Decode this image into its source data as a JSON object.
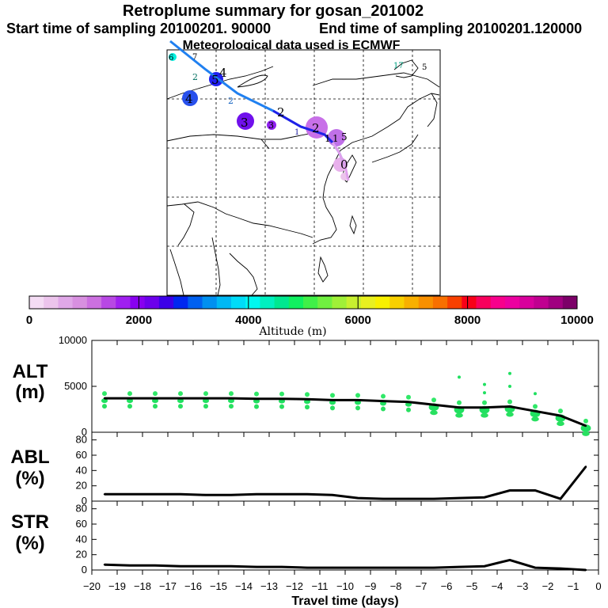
{
  "header": {
    "title": "Retroplume summary for gosan_201002",
    "start_label": "Start time of sampling 20100201. 90000",
    "end_label": "End time of sampling 20100201.120000",
    "met_label": "Meteorological data used is ECMWF"
  },
  "colorbar": {
    "label": "Altitude (m)",
    "ticks": [
      "0",
      "2000",
      "4000",
      "6000",
      "8000",
      "10000"
    ],
    "colors": [
      "#f4dcf4",
      "#ecc4ec",
      "#e0a8e8",
      "#d890e0",
      "#cc70e0",
      "#b848e4",
      "#a020f0",
      "#8800f0",
      "#6c00ec",
      "#3c00e8",
      "#0028f0",
      "#0060f0",
      "#0090f0",
      "#00b8f4",
      "#00dcf8",
      "#00f8f0",
      "#00f0c0",
      "#00e890",
      "#10f060",
      "#40f048",
      "#70f040",
      "#a0f038",
      "#c8f030",
      "#e8f020",
      "#f8f000",
      "#f8d000",
      "#f8b000",
      "#f89000",
      "#f87000",
      "#f84000",
      "#f80018",
      "#f8005c",
      "#f8008c",
      "#ec00a0",
      "#d8009c",
      "#c00090",
      "#a00080",
      "#7c0068"
    ]
  },
  "map": {
    "trajectory_labels": [
      "0",
      "1",
      "1",
      "2",
      "2",
      "3",
      "4",
      "5",
      "2",
      "3",
      "4",
      "6",
      "7",
      "2",
      "5",
      "1",
      "5",
      "17"
    ]
  },
  "chart_data": [
    {
      "type": "line",
      "panel": "ALT",
      "ylabel_lines": [
        "ALT",
        "(m)"
      ],
      "ylim": [
        0,
        10000
      ],
      "yticks": [
        "0",
        "5000",
        "10000"
      ],
      "x": [
        -19.5,
        -18.5,
        -17.5,
        -16.5,
        -15.5,
        -14.5,
        -13.5,
        -12.5,
        -11.5,
        -10.5,
        -9.5,
        -8.5,
        -7.5,
        -6.5,
        -5.5,
        -4.5,
        -3.5,
        -2.5,
        -1.5,
        -0.5
      ],
      "values": [
        3700,
        3700,
        3700,
        3700,
        3700,
        3700,
        3650,
        3650,
        3600,
        3500,
        3500,
        3400,
        3300,
        3000,
        2700,
        2700,
        2800,
        2300,
        1800,
        700
      ]
    },
    {
      "type": "line",
      "panel": "ABL",
      "ylabel_lines": [
        "ABL",
        "(%)"
      ],
      "ylim": [
        0,
        90
      ],
      "yticks": [
        "0",
        "20",
        "40",
        "60",
        "80"
      ],
      "x": [
        -19.5,
        -18.5,
        -17.5,
        -16.5,
        -15.5,
        -14.5,
        -13.5,
        -12.5,
        -11.5,
        -10.5,
        -9.5,
        -8.5,
        -7.5,
        -6.5,
        -5.5,
        -4.5,
        -3.5,
        -2.5,
        -1.5,
        -0.5
      ],
      "values": [
        9,
        9,
        9,
        9,
        8,
        8,
        9,
        9,
        9,
        8,
        4,
        3,
        3,
        3,
        4,
        5,
        14,
        14,
        3,
        45
      ]
    },
    {
      "type": "line",
      "panel": "STR",
      "ylabel_lines": [
        "STR",
        "(%)"
      ],
      "ylim": [
        0,
        90
      ],
      "yticks": [
        "0",
        "20",
        "40",
        "60",
        "80"
      ],
      "x": [
        -19.5,
        -18.5,
        -17.5,
        -16.5,
        -15.5,
        -14.5,
        -13.5,
        -12.5,
        -11.5,
        -10.5,
        -9.5,
        -8.5,
        -7.5,
        -6.5,
        -5.5,
        -4.5,
        -3.5,
        -2.5,
        -1.5,
        -0.5
      ],
      "values": [
        7,
        6,
        6,
        5,
        5,
        5,
        4,
        4,
        3,
        3,
        3,
        3,
        3,
        3,
        4,
        5,
        13,
        3,
        2,
        0
      ]
    }
  ],
  "xaxis": {
    "label": "Travel time (days)",
    "ticks": [
      "-20",
      "-19",
      "-18",
      "-17",
      "-16",
      "-15",
      "-14",
      "-13",
      "-12",
      "-11",
      "-10",
      "-9",
      "-8",
      "-7",
      "-6",
      "-5",
      "-4",
      "-3",
      "-2",
      "-1",
      "0"
    ]
  }
}
